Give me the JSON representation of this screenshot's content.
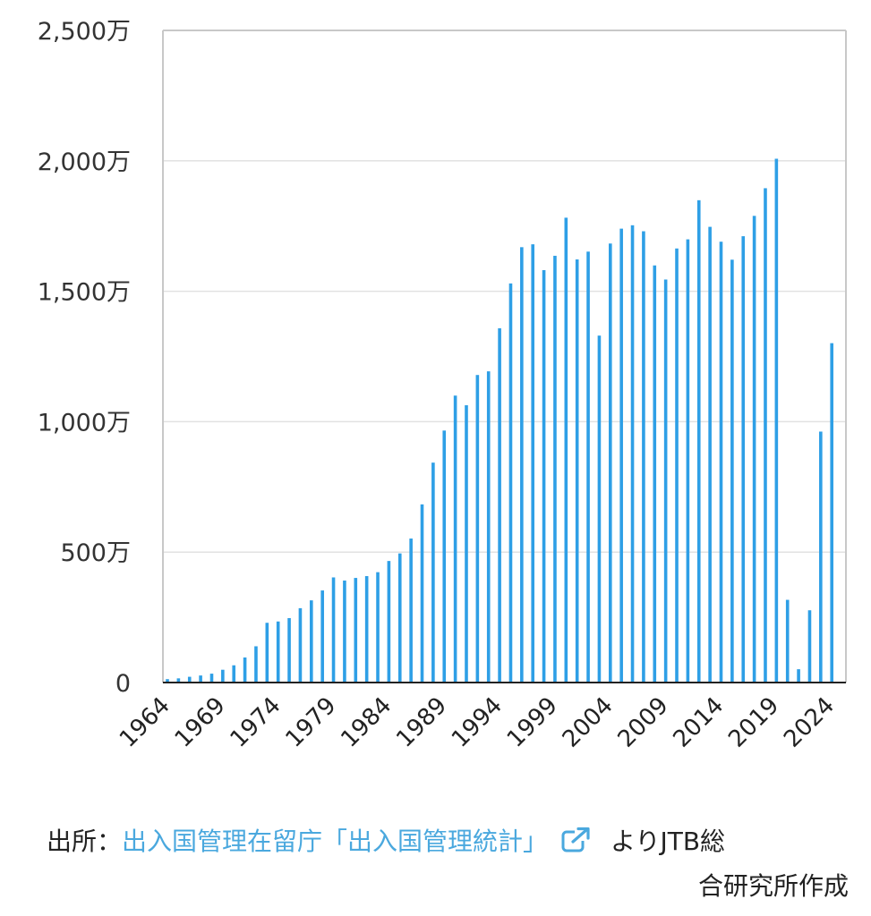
{
  "chart_data": {
    "type": "bar",
    "title": "",
    "xlabel": "",
    "ylabel": "",
    "unit": "万",
    "ylim": [
      0,
      2500
    ],
    "y_ticks": [
      0,
      500,
      1000,
      1500,
      2000,
      2500
    ],
    "y_tick_labels": [
      "0",
      "500万",
      "1,000万",
      "1,500万",
      "2,000万",
      "2,500万"
    ],
    "x_tick_labels": [
      "1964",
      "1969",
      "1974",
      "1979",
      "1984",
      "1989",
      "1994",
      "1999",
      "2004",
      "2009",
      "2014",
      "2019",
      "2024"
    ],
    "grid": true,
    "bar_color": "#2e9fe6",
    "categories": [
      "1964",
      "1965",
      "1966",
      "1967",
      "1968",
      "1969",
      "1970",
      "1971",
      "1972",
      "1973",
      "1974",
      "1975",
      "1976",
      "1977",
      "1978",
      "1979",
      "1980",
      "1981",
      "1982",
      "1983",
      "1984",
      "1985",
      "1986",
      "1987",
      "1988",
      "1989",
      "1990",
      "1991",
      "1992",
      "1993",
      "1994",
      "1995",
      "1996",
      "1997",
      "1998",
      "1999",
      "2000",
      "2001",
      "2002",
      "2003",
      "2004",
      "2005",
      "2006",
      "2007",
      "2008",
      "2009",
      "2010",
      "2011",
      "2012",
      "2013",
      "2014",
      "2015",
      "2016",
      "2017",
      "2018",
      "2019",
      "2020",
      "2021",
      "2022",
      "2023",
      "2024"
    ],
    "values": [
      13,
      16,
      22,
      27,
      34,
      49,
      66,
      96,
      139,
      229,
      234,
      247,
      285,
      315,
      353,
      403,
      391,
      401,
      408,
      423,
      466,
      495,
      552,
      683,
      843,
      966,
      1100,
      1063,
      1179,
      1193,
      1358,
      1530,
      1669,
      1680,
      1581,
      1636,
      1782,
      1622,
      1652,
      1330,
      1683,
      1740,
      1753,
      1730,
      1599,
      1545,
      1664,
      1699,
      1849,
      1747,
      1690,
      1621,
      1711,
      1789,
      1895,
      2008,
      317,
      51,
      277,
      962,
      1301
    ]
  },
  "source": {
    "prefix": "出所：",
    "link_text": "出入国管理在留庁「出入国管理統計」",
    "link_icon": "external-link-icon",
    "suffix_line1": "よりJTB総",
    "suffix_line2": "合研究所作成",
    "link_color": "#4aa8de"
  }
}
